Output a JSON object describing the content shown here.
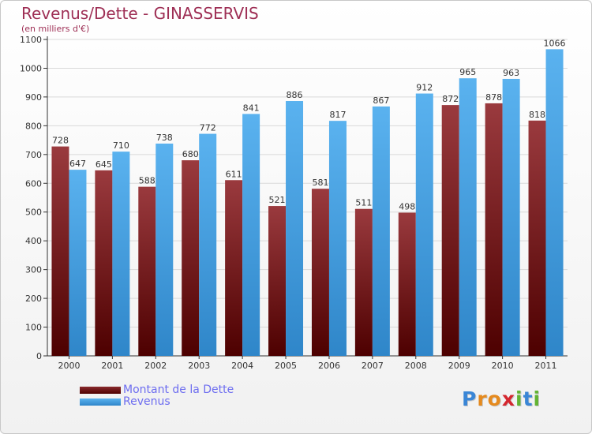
{
  "header": {
    "title": "Revenus/Dette - GINASSERVIS",
    "subtitle": "(en milliers d'€)"
  },
  "legend": {
    "items": [
      {
        "label": "Montant de la Dette",
        "color": "#6b0f14"
      },
      {
        "label": "Revenus",
        "color": "#4aa5e8"
      }
    ]
  },
  "logo": {
    "text": "Proxiti",
    "letters": [
      {
        "ch": "P",
        "color": "#3a86d6"
      },
      {
        "ch": "r",
        "color": "#e58a1e"
      },
      {
        "ch": "o",
        "color": "#e58a1e"
      },
      {
        "ch": "x",
        "color": "#d4262e"
      },
      {
        "ch": "i",
        "color": "#62b332"
      },
      {
        "ch": "t",
        "color": "#3a86d6"
      },
      {
        "ch": "i",
        "color": "#62b332"
      }
    ]
  },
  "chart_data": {
    "type": "bar",
    "title": "Revenus/Dette - GINASSERVIS",
    "subtitle": "(en milliers d'€)",
    "xlabel": "",
    "ylabel": "",
    "categories": [
      "2000",
      "2001",
      "2002",
      "2003",
      "2004",
      "2005",
      "2006",
      "2007",
      "2008",
      "2009",
      "2010",
      "2011"
    ],
    "series": [
      {
        "name": "Montant de la Dette",
        "color": "#6b0f14",
        "values": [
          728,
          645,
          588,
          680,
          611,
          521,
          581,
          511,
          498,
          872,
          878,
          818
        ]
      },
      {
        "name": "Revenus",
        "color": "#4aa5e8",
        "values": [
          647,
          710,
          738,
          772,
          841,
          886,
          817,
          867,
          912,
          965,
          963,
          1066
        ]
      }
    ],
    "ylim": [
      0,
      1100
    ],
    "yticks": [
      0,
      100,
      200,
      300,
      400,
      500,
      600,
      700,
      800,
      900,
      1000,
      1100
    ],
    "grid": true,
    "legend_position": "bottom-left"
  }
}
